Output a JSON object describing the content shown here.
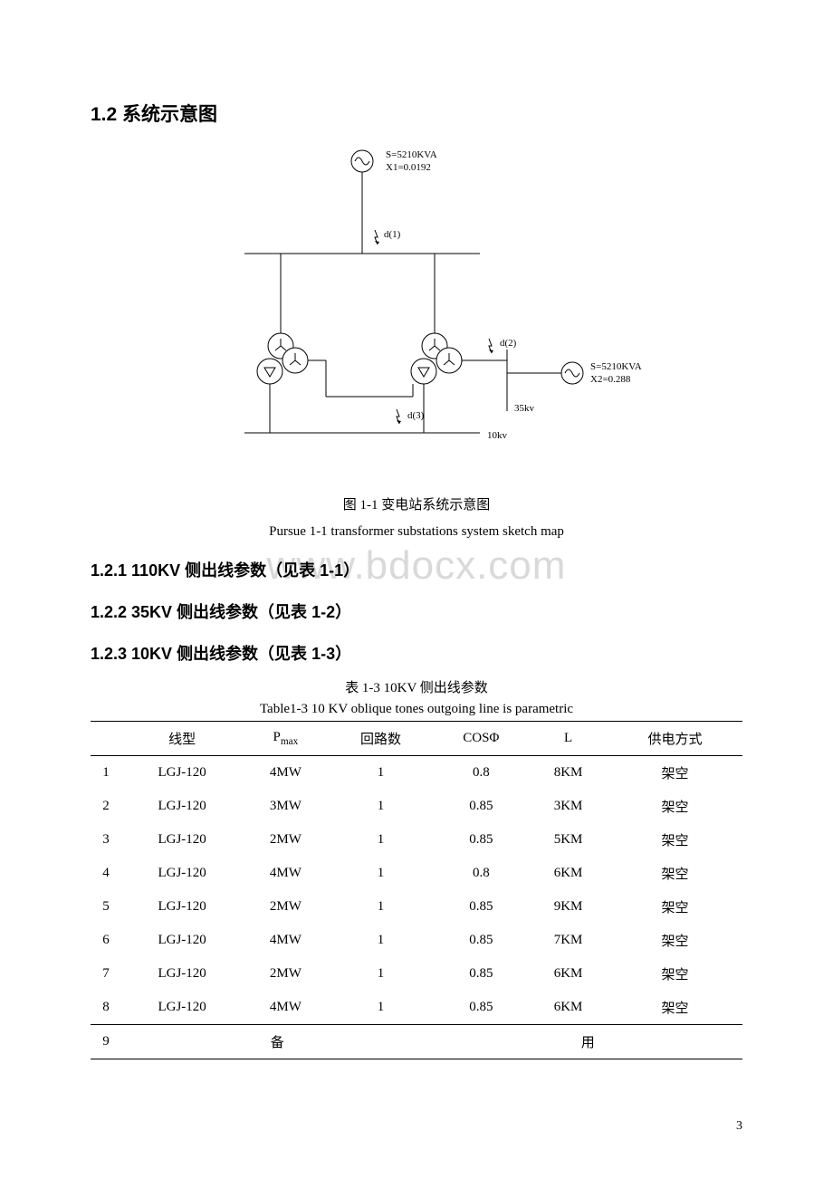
{
  "section": {
    "number": "1.2",
    "title": "系统示意图"
  },
  "diagram": {
    "type": "network",
    "source_top": {
      "S": "S=5210KVA",
      "X": "X1=0.0192"
    },
    "source_right": {
      "S": "S=5210KVA",
      "X": "X2=0.288"
    },
    "faults": {
      "d1": "d(1)",
      "d2": "d(2)",
      "d3": "d(3)"
    },
    "bus_labels": {
      "bus35": "35kv",
      "bus10": "10kv"
    },
    "stroke_color": "#000000",
    "stroke_width": 1,
    "background": "#ffffff",
    "caption_cn": "图 1-1 变电站系统示意图",
    "caption_en": "Pursue 1-1 transformer substations system sketch map"
  },
  "subsections": {
    "s1": "1.2.1 110KV 侧出线参数（见表 1-1）",
    "s2": "1.2.2  35KV 侧出线参数（见表 1-2）",
    "s3": "1.2.3  10KV 侧出线参数（见表 1-3）"
  },
  "table": {
    "title_cn": "表 1-3 10KV 侧出线参数",
    "title_en": "Table1-3 10 KV oblique tones outgoing line is parametric",
    "columns": [
      "",
      "线型",
      "P",
      "回路数",
      "COSΦ",
      "L",
      "供电方式"
    ],
    "pmax_sub": "max",
    "rows": [
      [
        "1",
        "LGJ-120",
        "4MW",
        "1",
        "0.8",
        "8KM",
        "架空"
      ],
      [
        "2",
        "LGJ-120",
        "3MW",
        "1",
        "0.85",
        "3KM",
        "架空"
      ],
      [
        "3",
        "LGJ-120",
        "2MW",
        "1",
        "0.85",
        "5KM",
        "架空"
      ],
      [
        "4",
        "LGJ-120",
        "4MW",
        "1",
        "0.8",
        "6KM",
        "架空"
      ],
      [
        "5",
        "LGJ-120",
        "2MW",
        "1",
        "0.85",
        "9KM",
        "架空"
      ],
      [
        "6",
        "LGJ-120",
        "4MW",
        "1",
        "0.85",
        "7KM",
        "架空"
      ],
      [
        "7",
        "LGJ-120",
        "2MW",
        "1",
        "0.85",
        "6KM",
        "架空"
      ],
      [
        "8",
        "LGJ-120",
        "4MW",
        "1",
        "0.85",
        "6KM",
        "架空"
      ]
    ],
    "reserve_row": {
      "index": "9",
      "left": "备",
      "right": "用"
    }
  },
  "watermark": "www.bdocx.com",
  "page_number": "3"
}
